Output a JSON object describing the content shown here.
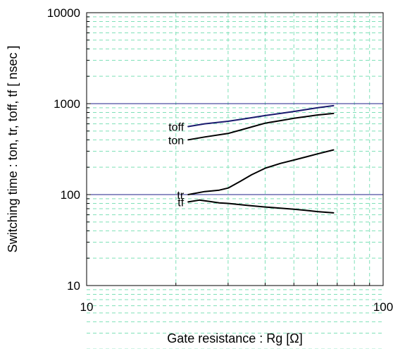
{
  "chart_data": {
    "type": "line",
    "xscale": "log",
    "yscale": "log",
    "xlim": [
      10,
      100
    ],
    "ylim": [
      10,
      10000
    ],
    "xlabel": "Gate resistance : Rg [Ω]",
    "ylabel": "Switching time  :  ton, tr, toff, tf  [ nsec ]",
    "x_ticks": [
      {
        "value": 10,
        "label": "10"
      },
      {
        "value": 100,
        "label": "100"
      }
    ],
    "y_ticks": [
      {
        "value": 10,
        "label": "10"
      },
      {
        "value": 100,
        "label": "100"
      },
      {
        "value": 1000,
        "label": "1000"
      },
      {
        "value": 10000,
        "label": "10000"
      }
    ],
    "grid": true,
    "reference_lines_y": [
      100,
      1000
    ],
    "series": [
      {
        "name": "toff",
        "color": "#1a1a6e",
        "x": [
          22,
          25,
          30,
          35,
          40,
          45,
          50,
          55,
          60,
          68
        ],
        "y": [
          560,
          600,
          640,
          690,
          740,
          780,
          820,
          860,
          900,
          950
        ]
      },
      {
        "name": "ton",
        "color": "#000000",
        "x": [
          22,
          25,
          30,
          35,
          40,
          45,
          50,
          55,
          60,
          68
        ],
        "y": [
          400,
          430,
          470,
          540,
          610,
          650,
          690,
          720,
          750,
          780
        ]
      },
      {
        "name": "tr",
        "color": "#000000",
        "x": [
          22,
          25,
          28,
          30,
          33,
          36,
          40,
          45,
          50,
          55,
          60,
          68
        ],
        "y": [
          100,
          108,
          112,
          118,
          140,
          165,
          195,
          220,
          240,
          260,
          280,
          310
        ]
      },
      {
        "name": "tf",
        "color": "#000000",
        "x": [
          22,
          24,
          26,
          28,
          30,
          35,
          40,
          45,
          50,
          55,
          60,
          68
        ],
        "y": [
          83,
          87,
          84,
          81,
          80,
          76,
          73,
          71,
          69,
          67,
          65,
          63
        ]
      }
    ]
  }
}
